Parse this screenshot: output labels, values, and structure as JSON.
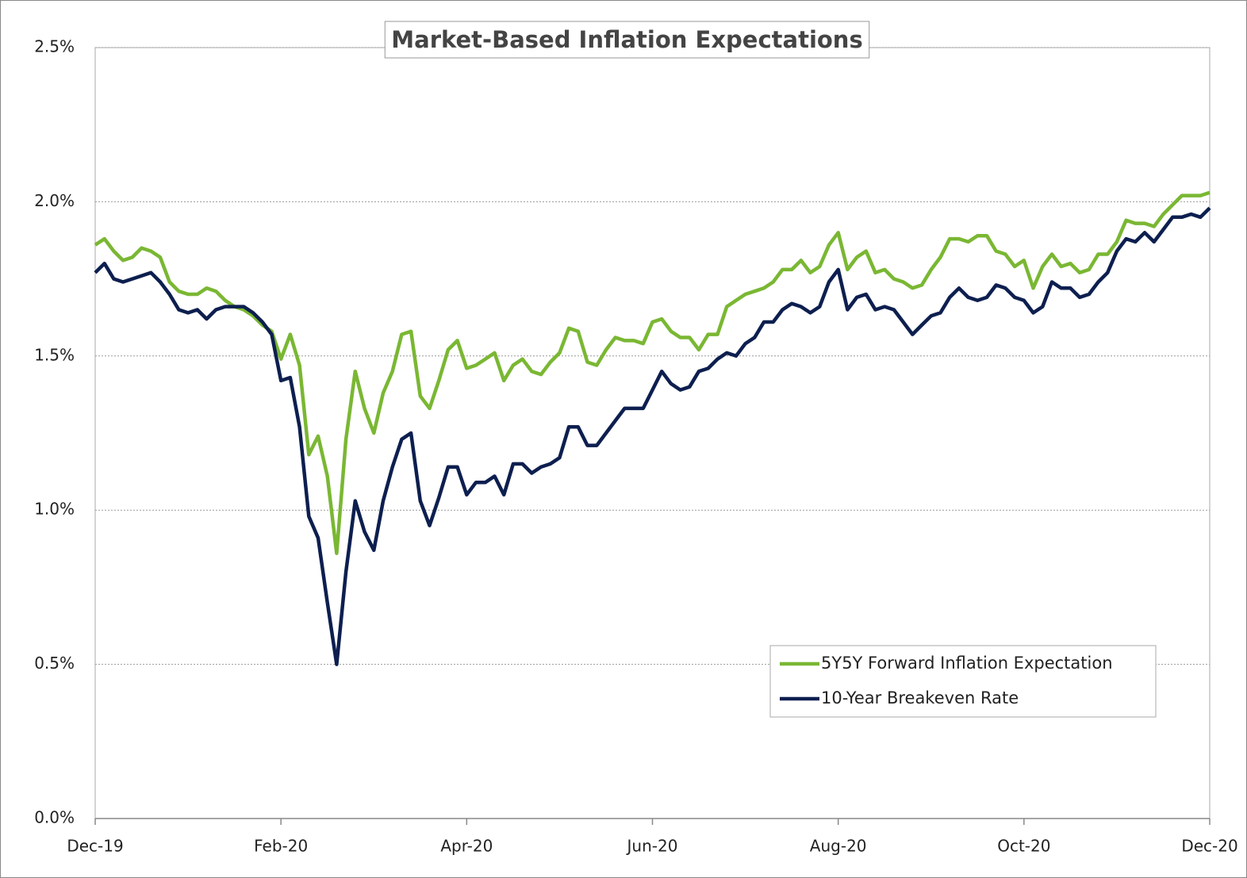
{
  "chart_data": {
    "type": "line",
    "title": "Market-Based Inflation Expectations",
    "categories": [
      "Dec-19",
      null,
      null,
      null,
      null,
      null,
      null,
      null,
      null,
      null,
      null,
      null,
      null,
      null,
      null,
      null,
      null,
      null,
      null,
      null,
      "Feb-20",
      null,
      null,
      null,
      null,
      null,
      null,
      null,
      null,
      null,
      null,
      null,
      null,
      null,
      null,
      null,
      null,
      null,
      null,
      null,
      "Apr-20",
      null,
      null,
      null,
      null,
      null,
      null,
      null,
      null,
      null,
      null,
      null,
      null,
      null,
      null,
      null,
      null,
      null,
      null,
      null,
      "Jun-20",
      null,
      null,
      null,
      null,
      null,
      null,
      null,
      null,
      null,
      null,
      null,
      null,
      null,
      null,
      null,
      null,
      null,
      null,
      null,
      "Aug-20",
      null,
      null,
      null,
      null,
      null,
      null,
      null,
      null,
      null,
      null,
      null,
      null,
      null,
      null,
      null,
      null,
      null,
      null,
      null,
      "Oct-20",
      null,
      null,
      null,
      null,
      null,
      null,
      null,
      null,
      null,
      null,
      null,
      null,
      null,
      null,
      null,
      null,
      null,
      null,
      null,
      "Dec-20"
    ],
    "series": [
      {
        "name": "5Y5Y Forward Inflation Expectation",
        "color": "#7ab733",
        "values": [
          1.86,
          1.88,
          1.84,
          1.81,
          1.82,
          1.85,
          1.84,
          1.82,
          1.74,
          1.71,
          1.7,
          1.7,
          1.72,
          1.71,
          1.68,
          1.66,
          1.65,
          1.63,
          1.6,
          1.58,
          1.49,
          1.57,
          1.47,
          1.18,
          1.24,
          1.11,
          0.86,
          1.23,
          1.45,
          1.33,
          1.25,
          1.38,
          1.45,
          1.57,
          1.58,
          1.37,
          1.33,
          1.42,
          1.52,
          1.55,
          1.46,
          1.47,
          1.49,
          1.51,
          1.42,
          1.47,
          1.49,
          1.45,
          1.44,
          1.48,
          1.51,
          1.59,
          1.58,
          1.48,
          1.47,
          1.52,
          1.56,
          1.55,
          1.55,
          1.54,
          1.61,
          1.62,
          1.58,
          1.56,
          1.56,
          1.52,
          1.57,
          1.57,
          1.66,
          1.68,
          1.7,
          1.71,
          1.72,
          1.74,
          1.78,
          1.78,
          1.81,
          1.77,
          1.79,
          1.86,
          1.9,
          1.78,
          1.82,
          1.84,
          1.77,
          1.78,
          1.75,
          1.74,
          1.72,
          1.73,
          1.78,
          1.82,
          1.88,
          1.88,
          1.87,
          1.89,
          1.89,
          1.84,
          1.83,
          1.79,
          1.81,
          1.72,
          1.79,
          1.83,
          1.79,
          1.8,
          1.77,
          1.78,
          1.83,
          1.83,
          1.87,
          1.94,
          1.93,
          1.93,
          1.92,
          1.96,
          1.99,
          2.02,
          2.02,
          2.02,
          2.03
        ]
      },
      {
        "name": "10-Year Breakeven Rate",
        "color": "#0d1f4f",
        "values": [
          1.77,
          1.8,
          1.75,
          1.74,
          1.75,
          1.76,
          1.77,
          1.74,
          1.7,
          1.65,
          1.64,
          1.65,
          1.62,
          1.65,
          1.66,
          1.66,
          1.66,
          1.64,
          1.61,
          1.57,
          1.42,
          1.43,
          1.27,
          0.98,
          0.91,
          0.7,
          0.5,
          0.8,
          1.03,
          0.93,
          0.87,
          1.03,
          1.14,
          1.23,
          1.25,
          1.03,
          0.95,
          1.04,
          1.14,
          1.14,
          1.05,
          1.09,
          1.09,
          1.11,
          1.05,
          1.15,
          1.15,
          1.12,
          1.14,
          1.15,
          1.17,
          1.27,
          1.27,
          1.21,
          1.21,
          1.25,
          1.29,
          1.33,
          1.33,
          1.33,
          1.39,
          1.45,
          1.41,
          1.39,
          1.4,
          1.45,
          1.46,
          1.49,
          1.51,
          1.5,
          1.54,
          1.56,
          1.61,
          1.61,
          1.65,
          1.67,
          1.66,
          1.64,
          1.66,
          1.74,
          1.78,
          1.65,
          1.69,
          1.7,
          1.65,
          1.66,
          1.65,
          1.61,
          1.57,
          1.6,
          1.63,
          1.64,
          1.69,
          1.72,
          1.69,
          1.68,
          1.69,
          1.73,
          1.72,
          1.69,
          1.68,
          1.64,
          1.66,
          1.74,
          1.72,
          1.72,
          1.69,
          1.7,
          1.74,
          1.77,
          1.84,
          1.88,
          1.87,
          1.9,
          1.87,
          1.91,
          1.95,
          1.95,
          1.96,
          1.95,
          1.98
        ]
      }
    ],
    "ylim": [
      0,
      2.5
    ],
    "yticks": [
      {
        "value": 0,
        "label": "0.0%"
      },
      {
        "value": 0.5,
        "label": "0.5%"
      },
      {
        "value": 1,
        "label": "1.0%"
      },
      {
        "value": 1.5,
        "label": "1.5%"
      },
      {
        "value": 2,
        "label": "2.0%"
      },
      {
        "value": 2.5,
        "label": "2.5%"
      }
    ],
    "grid": true,
    "legend": "lower right"
  }
}
